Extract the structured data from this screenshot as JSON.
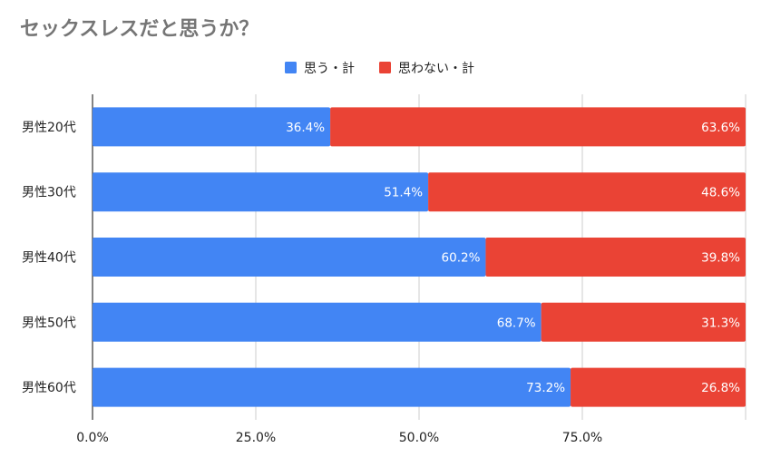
{
  "chart_data": {
    "type": "bar",
    "orientation": "horizontal",
    "stacked": true,
    "title": "セックスレスだと思うか？",
    "categories": [
      "男性20代",
      "男性30代",
      "男性40代",
      "男性50代",
      "男性60代"
    ],
    "series": [
      {
        "name": "思う・計",
        "color": "#4285f4",
        "values": [
          36.4,
          51.4,
          60.2,
          68.7,
          73.2
        ],
        "labels": [
          "36.4%",
          "51.4%",
          "60.2%",
          "68.7%",
          "73.2%"
        ]
      },
      {
        "name": "思わない・計",
        "color": "#ea4335",
        "values": [
          63.6,
          48.6,
          39.8,
          31.3,
          26.8
        ],
        "labels": [
          "63.6%",
          "48.6%",
          "39.8%",
          "31.3%",
          "26.8%"
        ]
      }
    ],
    "xlim": [
      0,
      100
    ],
    "xticks": [
      0,
      25,
      50,
      75
    ],
    "xtick_labels": [
      "0.0%",
      "25.0%",
      "50.0%",
      "75.0%"
    ],
    "grid": true,
    "legend_position": "top-center"
  }
}
